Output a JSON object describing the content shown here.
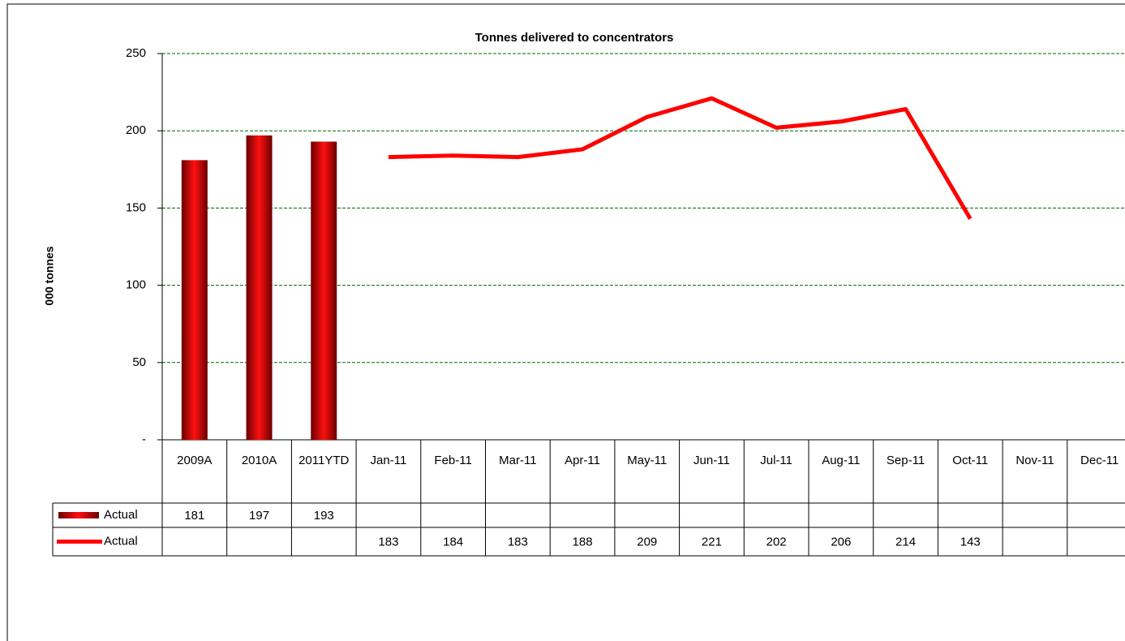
{
  "chart_data": {
    "type": "bar-line",
    "title": "Tonnes delivered to concentrators",
    "ylabel": "000 tonnes",
    "categories": [
      "2009A",
      "2010A",
      "2011YTD",
      "Jan-11",
      "Feb-11",
      "Mar-11",
      "Apr-11",
      "May-11",
      "Jun-11",
      "Jul-11",
      "Aug-11",
      "Sep-11",
      "Oct-11",
      "Nov-11",
      "Dec-11"
    ],
    "series": [
      {
        "name": "Actual",
        "type": "bar",
        "color": "#e00000",
        "values": [
          181,
          197,
          193,
          null,
          null,
          null,
          null,
          null,
          null,
          null,
          null,
          null,
          null,
          null,
          null
        ]
      },
      {
        "name": "Actual",
        "type": "line",
        "color": "#ff0000",
        "values": [
          null,
          null,
          null,
          183,
          184,
          183,
          188,
          209,
          221,
          202,
          206,
          214,
          143,
          null,
          null
        ]
      }
    ],
    "ylim": [
      0,
      250
    ],
    "yticks": [
      {
        "value": 0,
        "label": "-"
      },
      50,
      100,
      150,
      200,
      250
    ],
    "grid": true,
    "grid_color": "#006400"
  }
}
